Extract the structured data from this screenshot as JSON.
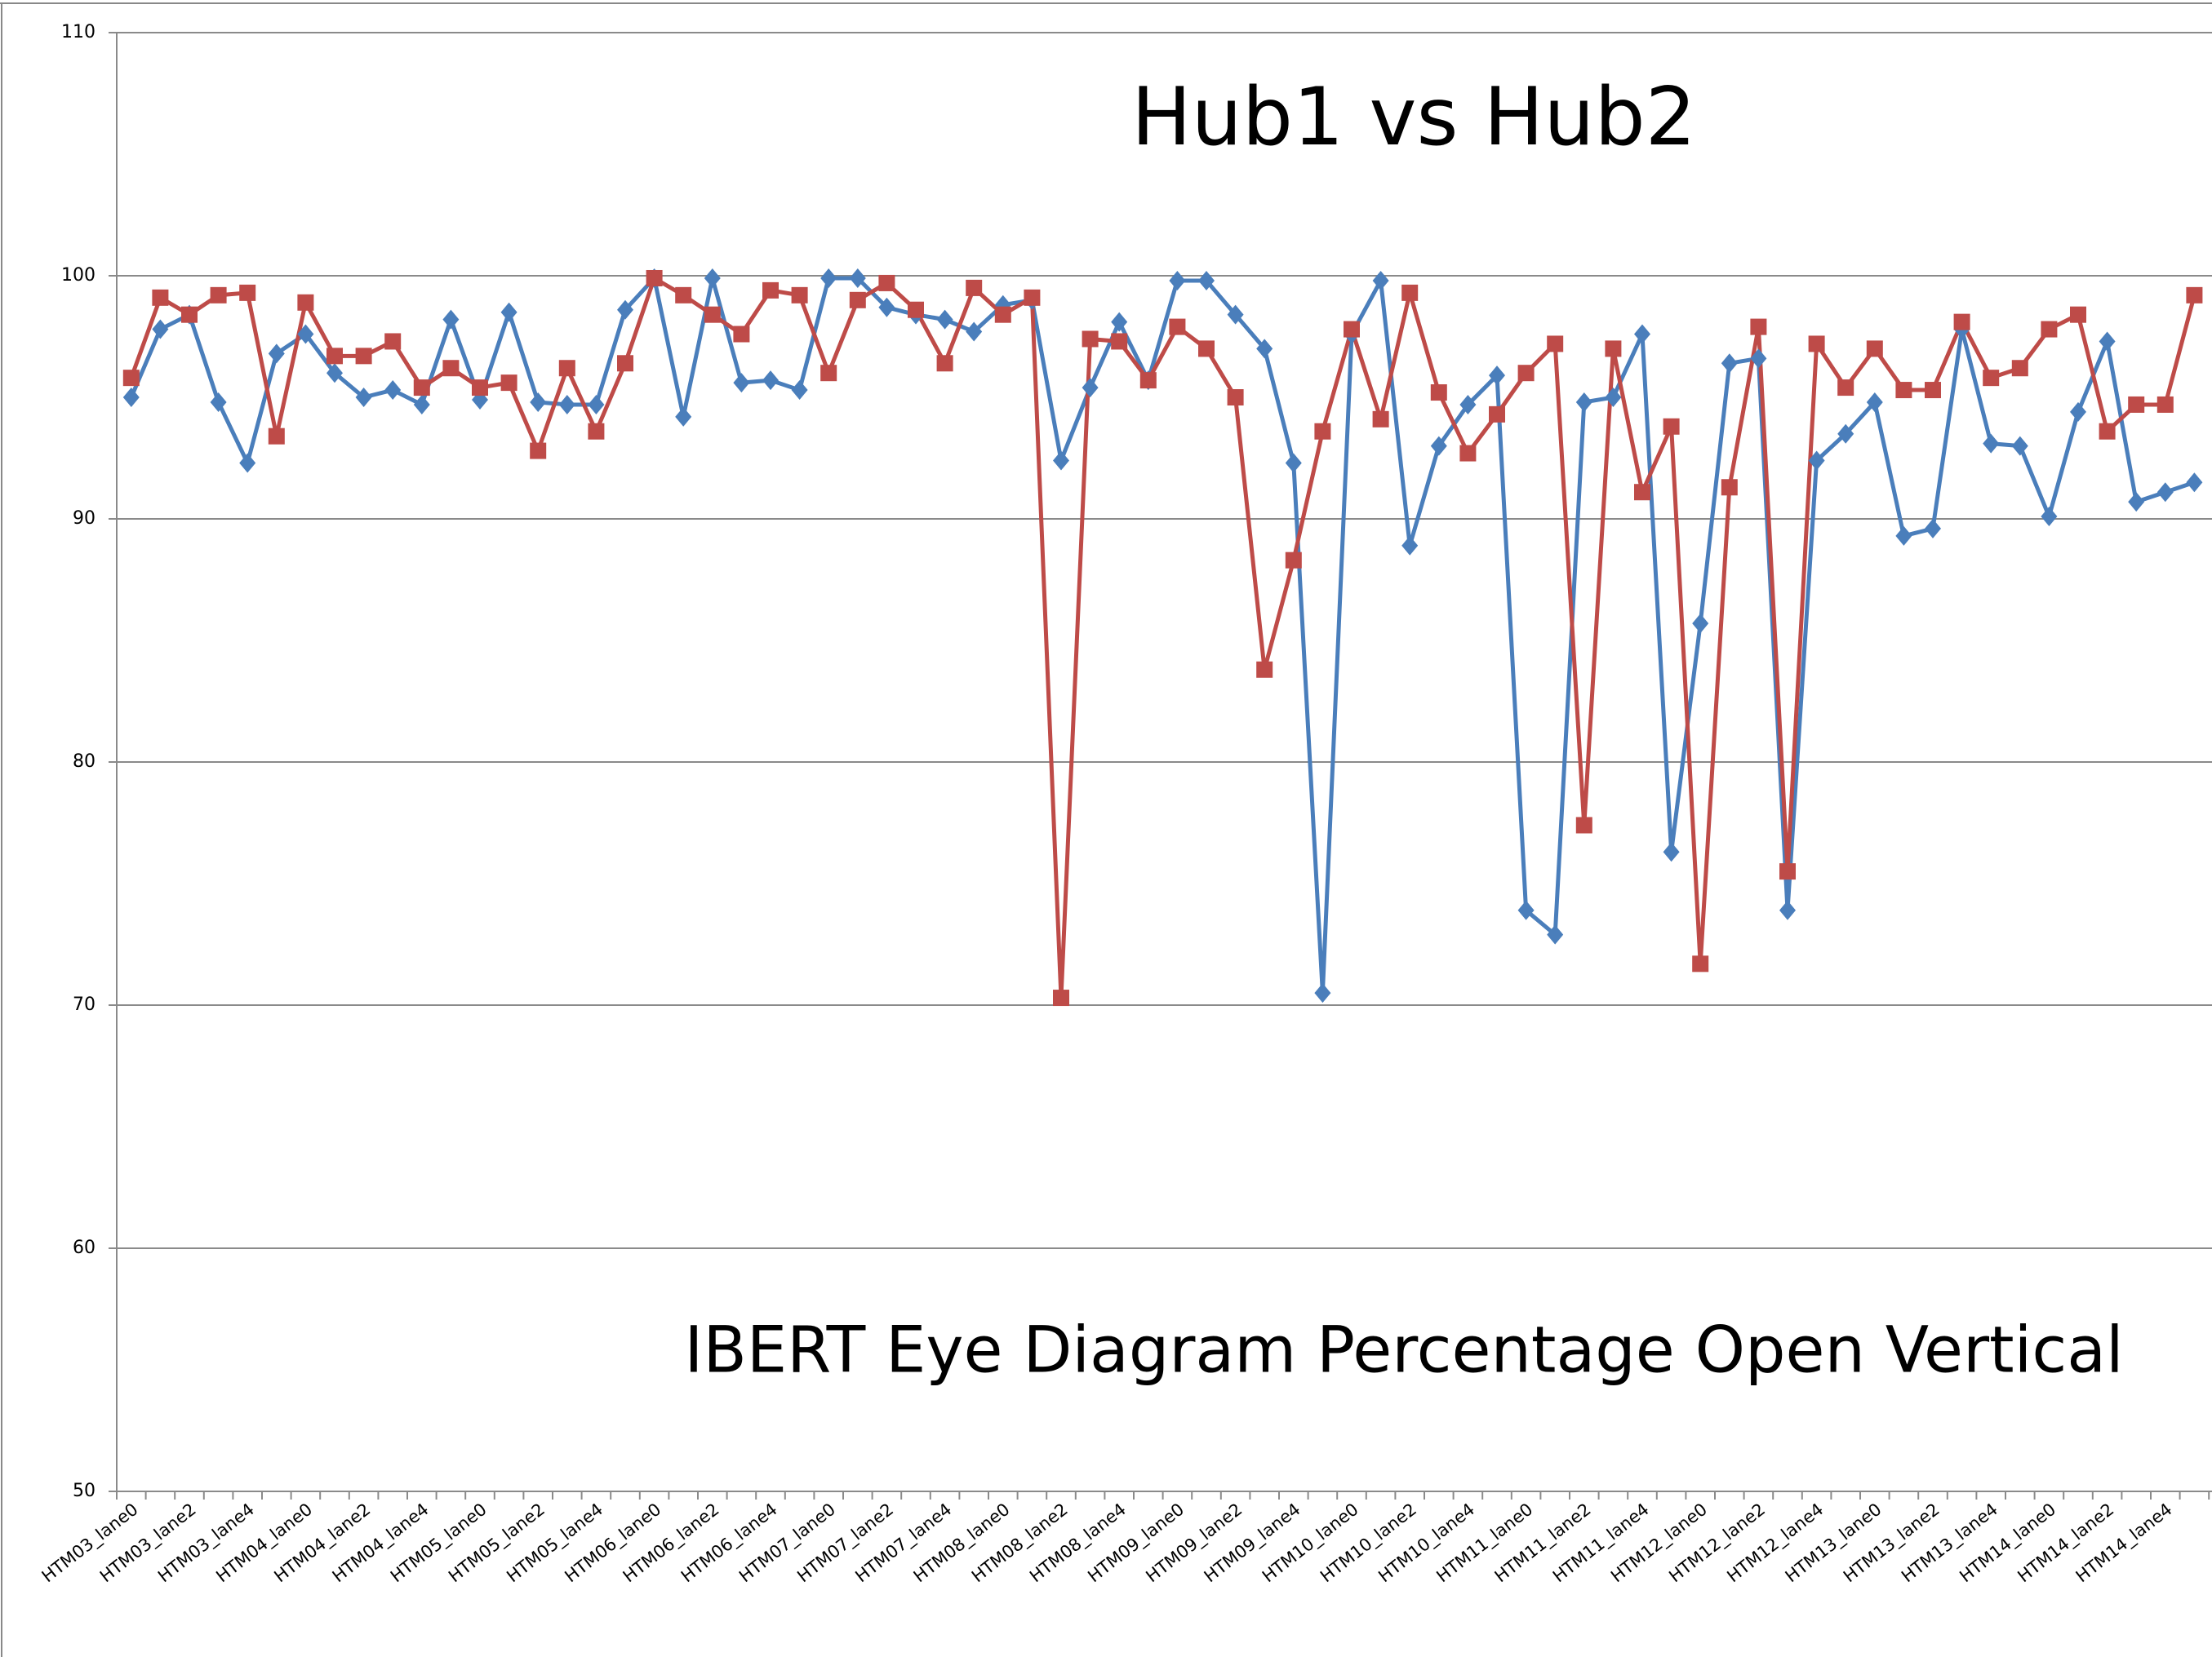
{
  "chart_data": {
    "type": "line",
    "title": "Hub1 vs Hub2",
    "subtitle": "IBERT Eye Diagram Percentage Open Vertical",
    "categories": [
      "HTM03_lane0",
      null,
      "HTM03_lane2",
      null,
      "HTM03_lane4",
      null,
      "HTM04_lane0",
      null,
      "HTM04_lane2",
      null,
      "HTM04_lane4",
      null,
      "HTM05_lane0",
      null,
      "HTM05_lane2",
      null,
      "HTM05_lane4",
      null,
      "HTM06_lane0",
      null,
      "HTM06_lane2",
      null,
      "HTM06_lane4",
      null,
      "HTM07_lane0",
      null,
      "HTM07_lane2",
      null,
      "HTM07_lane4",
      null,
      "HTM08_lane0",
      null,
      "HTM08_lane2",
      null,
      "HTM08_lane4",
      null,
      "HTM09_lane0",
      null,
      "HTM09_lane2",
      null,
      "HTM09_lane4",
      null,
      "HTM10_lane0",
      null,
      "HTM10_lane2",
      null,
      "HTM10_lane4",
      null,
      "HTM11_lane0",
      null,
      "HTM11_lane2",
      null,
      "HTM11_lane4",
      null,
      "HTM12_lane0",
      null,
      "HTM12_lane2",
      null,
      "HTM12_lane4",
      null,
      "HTM13_lane0",
      null,
      "HTM13_lane2",
      null,
      "HTM13_lane4",
      null,
      "HTM14_lane0",
      null,
      "HTM14_lane2",
      null,
      "HTM14_lane4",
      null
    ],
    "series": [
      {
        "color": "#4a7ebb",
        "marker": "diamond",
        "values": [
          95.0,
          97.8,
          98.4,
          94.8,
          92.3,
          96.8,
          97.6,
          96.0,
          95.0,
          95.3,
          94.7,
          98.2,
          94.9,
          98.5,
          94.8,
          94.7,
          94.7,
          98.6,
          99.9,
          94.2,
          99.9,
          95.6,
          95.7,
          95.3,
          99.9,
          99.9,
          98.7,
          98.4,
          98.2,
          97.7,
          98.8,
          99.0,
          92.4,
          95.4,
          98.1,
          95.7,
          99.8,
          99.8,
          98.4,
          97.0,
          92.3,
          70.5,
          97.6,
          99.8,
          88.9,
          93.0,
          94.7,
          95.9,
          73.9,
          72.9,
          94.8,
          95.0,
          97.6,
          76.3,
          85.7,
          96.4,
          96.6,
          73.9,
          92.4,
          93.5,
          94.8,
          89.3,
          89.6,
          97.8,
          93.1,
          93.0,
          90.1,
          94.4,
          97.3,
          90.7,
          91.1,
          91.5
        ]
      },
      {
        "color": "#be4b48",
        "marker": "square",
        "values": [
          95.8,
          99.1,
          98.4,
          99.2,
          99.3,
          93.4,
          98.9,
          96.7,
          96.7,
          97.3,
          95.4,
          96.2,
          95.4,
          95.6,
          92.8,
          96.2,
          93.6,
          96.4,
          99.9,
          99.2,
          98.4,
          97.6,
          99.4,
          99.2,
          96.0,
          99.0,
          99.7,
          98.6,
          96.4,
          99.5,
          98.4,
          99.1,
          70.3,
          97.4,
          97.3,
          95.7,
          97.9,
          97.0,
          95.0,
          83.8,
          88.3,
          93.6,
          97.8,
          94.1,
          99.3,
          95.2,
          92.7,
          94.3,
          96.0,
          97.2,
          77.4,
          97.0,
          91.1,
          93.8,
          71.7,
          91.3,
          97.9,
          75.5,
          97.2,
          95.4,
          97.0,
          95.3,
          95.3,
          98.1,
          95.8,
          96.2,
          97.8,
          98.4,
          93.6,
          94.7,
          94.7,
          99.2
        ]
      }
    ],
    "ylim": [
      50,
      110
    ],
    "yticks": [
      50,
      60,
      70,
      80,
      90,
      100,
      110
    ],
    "grid": true
  }
}
